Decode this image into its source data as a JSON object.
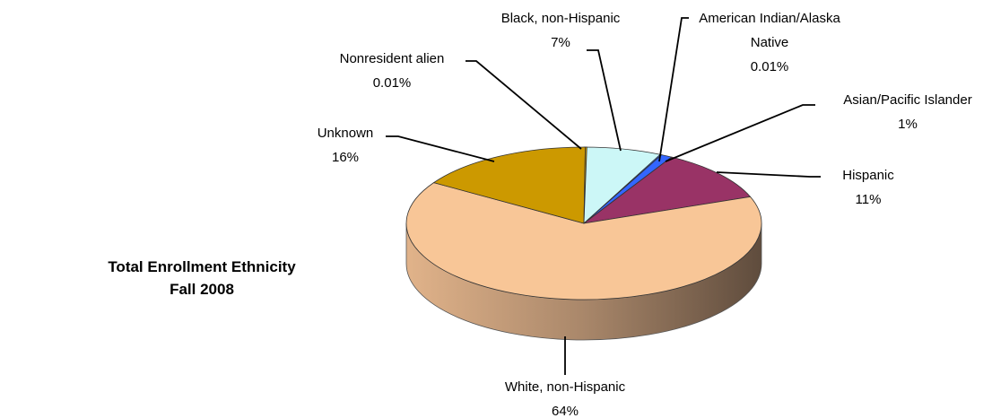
{
  "chart_data": {
    "type": "pie",
    "title": [
      "Total Enrollment Ethnicity",
      "Fall 2008"
    ],
    "slices": [
      {
        "name": "Black, non-Hispanic",
        "value": 7,
        "label_value": "7%",
        "color": "#ccf7f7"
      },
      {
        "name": "American Indian/Alaska Native",
        "value": 0.01,
        "label_value": "0.01%",
        "color": "#3366ff"
      },
      {
        "name": "Asian/Pacific Islander",
        "value": 1,
        "label_value": "1%",
        "color": "#3366ff"
      },
      {
        "name": "Hispanic",
        "value": 11,
        "label_value": "11%",
        "color": "#993366"
      },
      {
        "name": "White, non-Hispanic",
        "value": 64,
        "label_value": "64%",
        "color": "#f8c697"
      },
      {
        "name": "Unknown",
        "value": 16,
        "label_value": "16%",
        "color": "#cc9900"
      },
      {
        "name": "Nonresident alien",
        "value": 0.01,
        "label_value": "0.01%",
        "color": "#cc9900"
      }
    ],
    "start_direction": "top",
    "direction": "clockwise",
    "style": "3d"
  }
}
